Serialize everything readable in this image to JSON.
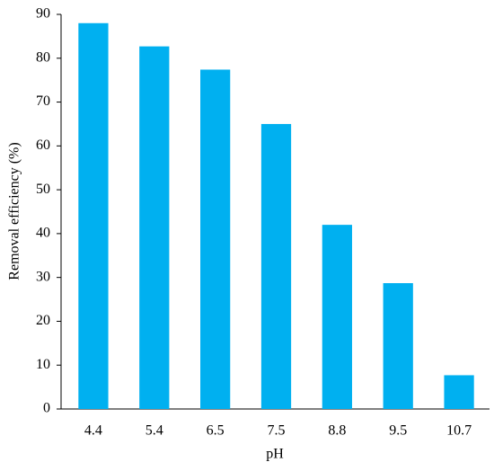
{
  "chart_data": {
    "type": "bar",
    "categories": [
      "4.4",
      "5.4",
      "6.5",
      "7.5",
      "8.8",
      "9.5",
      "10.7"
    ],
    "values": [
      88,
      82.7,
      77.4,
      65,
      42,
      28.7,
      7.7
    ],
    "color": "#00b0f0",
    "xlabel": "pH",
    "ylabel": "Removal efficiency (%)",
    "ylim": [
      0,
      90
    ],
    "yticks": [
      0,
      10,
      20,
      30,
      40,
      50,
      60,
      70,
      80,
      90
    ],
    "grid": false
  }
}
